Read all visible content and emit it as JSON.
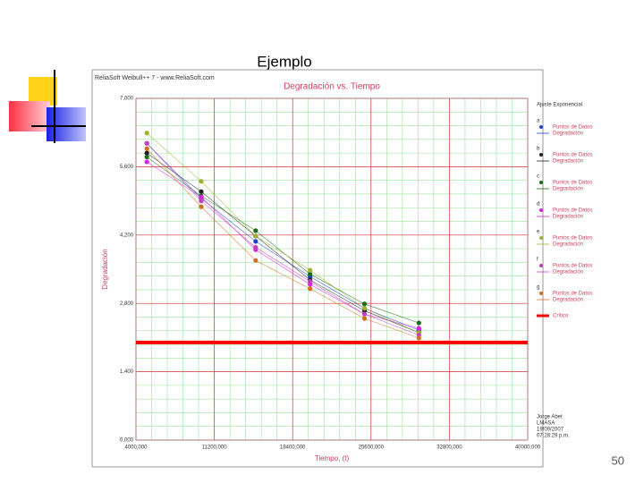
{
  "slide_title": "Ejemplo",
  "page_number": "50",
  "window_title": "ReliaSoft Weibull++ 7 - www.ReliaSoft.com",
  "chart_data": {
    "type": "scatter",
    "title": "Degradación vs. Tiempo",
    "x_label": "Tiempo, (t)",
    "y_label": "Degradación",
    "legend_title": "Ajuste Exponencial",
    "points_label": "Puntos de Datos",
    "line_label": "Degradación",
    "x": [
      5000,
      10000,
      15000,
      20000,
      25000,
      30000
    ],
    "series": [
      {
        "name": "a",
        "color": "#2040d0",
        "values": [
          6080,
          4950,
          4070,
          3350,
          2700,
          2250
        ]
      },
      {
        "name": "b",
        "color": "#202020",
        "values": [
          5880,
          5090,
          4180,
          3280,
          2650,
          2200
        ]
      },
      {
        "name": "c",
        "color": "#1a6b1a",
        "values": [
          5800,
          5000,
          4290,
          3400,
          2790,
          2400
        ]
      },
      {
        "name": "d",
        "color": "#e020e0",
        "values": [
          5700,
          4980,
          3900,
          3190,
          2580,
          2290
        ]
      },
      {
        "name": "e",
        "color": "#a0b030",
        "values": [
          6290,
          5300,
          4180,
          3480,
          2700,
          2200
        ]
      },
      {
        "name": "f",
        "color": "#c040c0",
        "values": [
          6080,
          4900,
          3950,
          3250,
          2580,
          2150
        ]
      },
      {
        "name": "g",
        "color": "#d07020",
        "values": [
          5970,
          4780,
          3680,
          3100,
          2490,
          2090
        ]
      }
    ],
    "critical": {
      "name": "Crítico",
      "color": "#ff0000",
      "value": 2000
    },
    "xlim": [
      4000,
      40000
    ],
    "xticks": [
      {
        "value": 4000,
        "label": "4000,000"
      },
      {
        "value": 11200,
        "label": "11200,000"
      },
      {
        "value": 18400,
        "label": "18400,000"
      },
      {
        "value": 25600,
        "label": "25600,000"
      },
      {
        "value": 32800,
        "label": "32800,000"
      },
      {
        "value": 40000,
        "label": "40000,000"
      }
    ],
    "ylim": [
      0,
      7000
    ],
    "yticks": [
      {
        "value": 0,
        "label": "0,000"
      },
      {
        "value": 1400,
        "label": "1,400"
      },
      {
        "value": 2800,
        "label": "2,800"
      },
      {
        "value": 4200,
        "label": "4,200"
      },
      {
        "value": 5600,
        "label": "5,600"
      },
      {
        "value": 7000,
        "label": "7,000"
      }
    ],
    "grid": true,
    "footer": [
      "Jorge Abet",
      "LMASA",
      "19/09/2007",
      "07:28:29 p.m."
    ]
  }
}
